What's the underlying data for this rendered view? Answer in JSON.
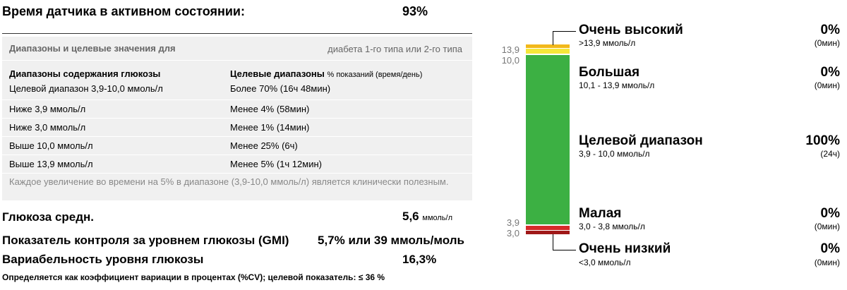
{
  "sensor": {
    "label": "Время датчика в активном состоянии:",
    "value": "93%"
  },
  "targets_panel": {
    "header_left": "Диапазоны и целевые значения для",
    "header_right": "диабета 1-го типа или 2-го типа",
    "col1_header": "Диапазоны содержания глюкозы",
    "col2_header": "Целевые диапазоны",
    "col2_header_sub": "% показаний (время/день)",
    "rows": [
      {
        "range": "Целевой диапазон 3,9-10,0 ммоль/л",
        "target": "Более 70% (16ч 48мин)"
      },
      {
        "range": "Ниже 3,9 ммоль/л",
        "target": "Менее 4% (58мин)"
      },
      {
        "range": "Ниже 3,0 ммоль/л",
        "target": "Менее 1% (14мин)"
      },
      {
        "range": "Выше 10,0 ммоль/л",
        "target": "Менее 25% (6ч)"
      },
      {
        "range": "Выше 13,9 ммоль/л",
        "target": "Менее 5% (1ч 12мин)"
      }
    ],
    "note": "Каждое увеличение во времени на 5% в диапазоне (3,9-10,0 ммоль/л) является клинически полезным."
  },
  "metrics": {
    "mean_label": "Глюкоза средн.",
    "mean_value": "5,6",
    "mean_unit": "ммоль/л",
    "gmi_label": "Показатель контроля за уровнем глюкозы (GMI)",
    "gmi_value": "5,7% или 39 ммоль/моль",
    "cv_label": "Вариабельность уровня глюкозы",
    "cv_value": "16,3%",
    "cv_note": "Определяется как коэффициент вариации в процентах (%CV); целевой показатель: ≤ 36 %"
  },
  "time_in_range": {
    "ticks": [
      "13,9",
      "10,0",
      "3,9",
      "3,0"
    ],
    "colors": {
      "very_high": "#f2b81a",
      "high": "#f5e73a",
      "target": "#3cb043",
      "low": "#d62a2a",
      "very_low": "#a01818"
    },
    "segments": [
      {
        "name": "Очень высокий",
        "range": ">13,9 ммоль/л",
        "percent": "0%",
        "duration": "(0мин)"
      },
      {
        "name": "Большая",
        "range": "10,1 - 13,9 ммоль/л",
        "percent": "0%",
        "duration": "(0мин)"
      },
      {
        "name": "Целевой диапазон",
        "range": "3,9 - 10,0 ммоль/л",
        "percent": "100%",
        "duration": "(24ч)"
      },
      {
        "name": "Малая",
        "range": "3,0 - 3,8 ммоль/л",
        "percent": "0%",
        "duration": "(0мин)"
      },
      {
        "name": "Очень низкий",
        "range": "<3,0 ммоль/л",
        "percent": "0%",
        "duration": "(0мин)"
      }
    ]
  }
}
